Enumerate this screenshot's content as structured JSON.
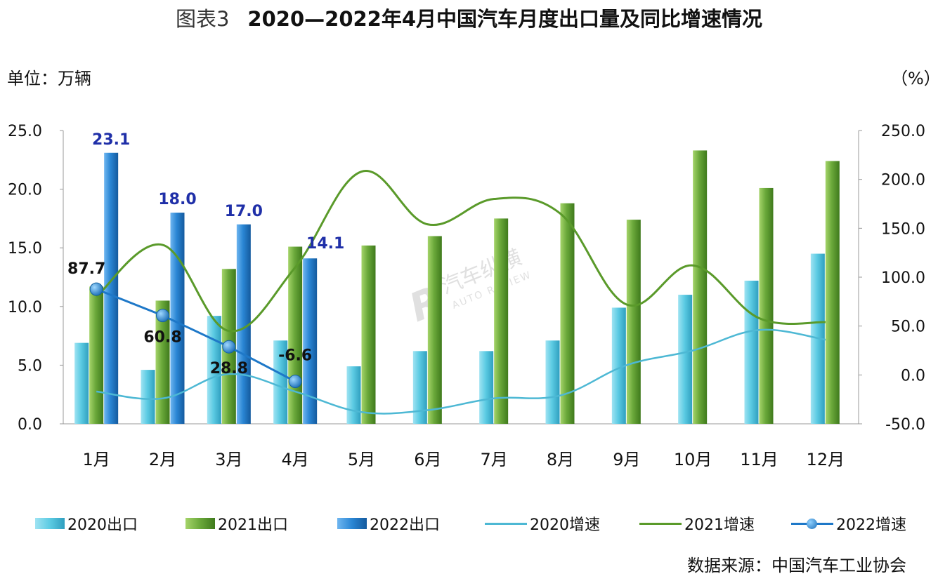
{
  "title": {
    "prefix": "图表3",
    "main": "2020—2022年4月中国汽车月度出口量及同比增速情况"
  },
  "left_unit": "单位：万辆",
  "right_unit": "（%）",
  "source": "数据来源：中国汽车工业协会",
  "chart_data": {
    "type": "bar",
    "categories": [
      "1月",
      "2月",
      "3月",
      "4月",
      "5月",
      "6月",
      "7月",
      "8月",
      "9月",
      "10月",
      "11月",
      "12月"
    ],
    "left_axis": {
      "ylim": [
        0,
        25
      ],
      "ticks": [
        "0.0",
        "5.0",
        "10.0",
        "15.0",
        "20.0",
        "25.0"
      ]
    },
    "right_axis": {
      "ylim": [
        -50,
        250
      ],
      "ticks": [
        "-50.0",
        "0.0",
        "50.0",
        "100.0",
        "150.0",
        "200.0",
        "250.0"
      ]
    },
    "series": [
      {
        "name": "2020出口",
        "kind": "bar",
        "axis": "left",
        "color": "#4fc3dc",
        "values": [
          6.9,
          4.6,
          9.2,
          7.1,
          4.9,
          6.2,
          6.2,
          7.1,
          9.9,
          11.0,
          12.2,
          14.5
        ]
      },
      {
        "name": "2021出口",
        "kind": "bar",
        "axis": "left",
        "color": "#5c9a2e",
        "values": [
          11.7,
          10.5,
          13.2,
          15.1,
          15.2,
          16.0,
          17.5,
          18.8,
          17.4,
          23.3,
          20.1,
          22.4
        ]
      },
      {
        "name": "2022出口",
        "kind": "bar",
        "axis": "left",
        "color": "#1e78c8",
        "values": [
          23.1,
          18.0,
          17.0,
          14.1,
          null,
          null,
          null,
          null,
          null,
          null,
          null,
          null
        ],
        "labels": [
          "23.1",
          "18.0",
          "17.0",
          "14.1"
        ]
      },
      {
        "name": "2020增速",
        "kind": "line",
        "axis": "right",
        "color": "#4db8d4",
        "values": [
          -17,
          -24,
          1,
          -17,
          -38,
          -36,
          -24,
          -21,
          10,
          25,
          46,
          36
        ]
      },
      {
        "name": "2021增速",
        "kind": "line",
        "axis": "right",
        "color": "#5a9a2a",
        "values": [
          80,
          133,
          45,
          110,
          208,
          154,
          180,
          165,
          72,
          112,
          58,
          54
        ]
      },
      {
        "name": "2022增速",
        "kind": "line-marker",
        "axis": "right",
        "color": "#1e78c8",
        "values": [
          87.7,
          60.8,
          28.8,
          -6.6,
          null,
          null,
          null,
          null,
          null,
          null,
          null,
          null
        ],
        "labels": [
          "87.7",
          "60.8",
          "28.8",
          "-6.6"
        ]
      }
    ],
    "watermark": {
      "cn": "汽车纵横",
      "en": "AUTO REVIEW",
      "logo": "R"
    }
  }
}
